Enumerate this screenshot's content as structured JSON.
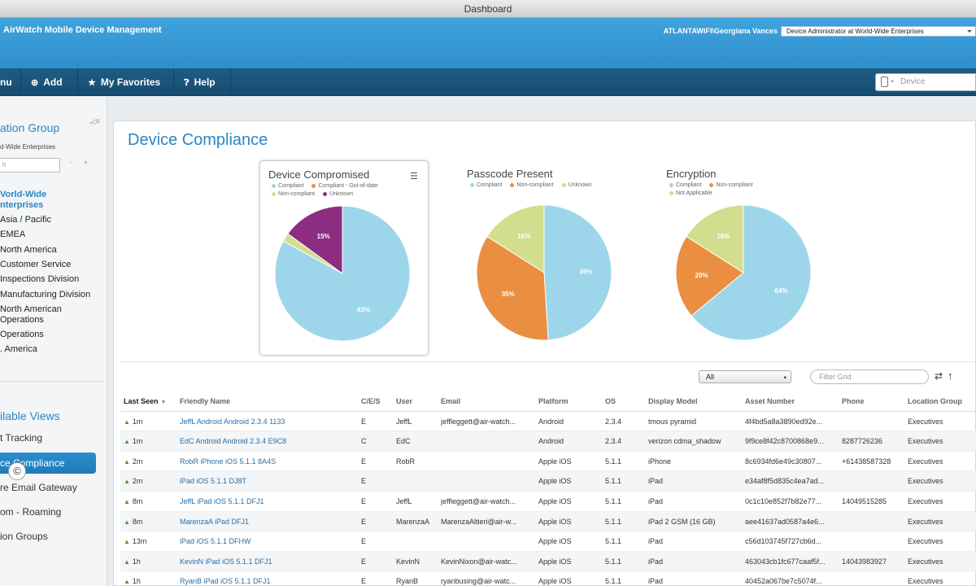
{
  "window": {
    "title": "Dashboard"
  },
  "header": {
    "brand": "AirWatch Mobile Device Management",
    "user": "ATLANTAWIFI\\Georgiana Vances",
    "role": "Device Administrator at World-Wide Enterprises"
  },
  "nav": {
    "items": [
      {
        "label": "nu",
        "icon": "menu-icon"
      },
      {
        "label": "Add",
        "icon": "plus-icon"
      },
      {
        "label": "My Favorites",
        "icon": "star-icon"
      },
      {
        "label": "Help",
        "icon": "help-icon"
      }
    ],
    "device_search_placeholder": "Device"
  },
  "sidebar": {
    "title": "ation Group",
    "subtitle": "d-Wide Enterprises",
    "search_placeholder": "h",
    "tree": [
      {
        "label": "Vorld-Wide"
      },
      {
        "label": "nterprises"
      },
      {
        "label": "Asia / Pacific"
      },
      {
        "label": "EMEA"
      },
      {
        "label": "North America"
      },
      {
        "label": "Customer Service"
      },
      {
        "label": "Inspections Division"
      },
      {
        "label": "Manufacturing Division"
      },
      {
        "label": "North American"
      },
      {
        "label": "Operations"
      },
      {
        "label": "Operations"
      },
      {
        "label": ". America"
      }
    ],
    "views_title": "ilable Views",
    "views": [
      {
        "label": "t Tracking"
      },
      {
        "label": "ce Compliance"
      },
      {
        "label": "re Email Gateway"
      },
      {
        "label": "om - Roaming"
      },
      {
        "label": "ion Groups"
      }
    ],
    "copyright": "©"
  },
  "main": {
    "title": "Device Compliance",
    "grid_filter_value": "All",
    "filter_placeholder": "Filter Grid"
  },
  "charts": {
    "colors": {
      "compliant": "#9dd6ea",
      "compliant_ooo": "#ea8f41",
      "non_compliant": "#d3dd8e",
      "unknown": "#8c2d82",
      "pc_noncompliant": "#ea8f41",
      "pc_unknown": "#d3dd8e",
      "not_applicable": "#d3dd8e"
    }
  },
  "chart_data": [
    {
      "type": "pie",
      "title": "Device Compromised",
      "legend": [
        "Compliant",
        "Compliant - Out-of-date",
        "Non-compliant",
        "Unknown"
      ],
      "slices": [
        {
          "label": "Compliant",
          "value": 83,
          "text": "83%",
          "color": "#9dd6ea"
        },
        {
          "label": "Non-compliant",
          "value": 2,
          "text": "",
          "color": "#d3dd8e"
        },
        {
          "label": "Unknown",
          "value": 15,
          "text": "15%",
          "color": "#8c2d82"
        }
      ]
    },
    {
      "type": "pie",
      "title": "Passcode Present",
      "legend": [
        "Compliant",
        "Non-compliant",
        "Unknown"
      ],
      "slices": [
        {
          "label": "Compliant",
          "value": 49,
          "text": "49%",
          "color": "#9dd6ea"
        },
        {
          "label": "Non-compliant",
          "value": 35,
          "text": "35%",
          "color": "#ea8f41"
        },
        {
          "label": "Unknown",
          "value": 16,
          "text": "16%",
          "color": "#d3dd8e"
        }
      ]
    },
    {
      "type": "pie",
      "title": "Encryption",
      "legend": [
        "Compliant",
        "Non-compliant",
        "Not Applicable"
      ],
      "slices": [
        {
          "label": "Compliant",
          "value": 64,
          "text": "64%",
          "color": "#9dd6ea"
        },
        {
          "label": "Non-compliant",
          "value": 20,
          "text": "20%",
          "color": "#ea8f41"
        },
        {
          "label": "Not Applicable",
          "value": 16,
          "text": "16%",
          "color": "#d3dd8e"
        }
      ]
    }
  ],
  "grid": {
    "columns": [
      "Last Seen",
      "Friendly Name",
      "C/E/S",
      "User",
      "Email",
      "Platform",
      "OS",
      "Display Model",
      "Asset Number",
      "Phone",
      "Location Group"
    ],
    "rows": [
      [
        "1m",
        "JeffL Android Android 2.3.4 1133",
        "E",
        "JeffL",
        "jeffleggett@air-watch...",
        "Android",
        "2.3.4",
        "tmous pyramid",
        "4f4bd5a8a3890ed92e...",
        "",
        "Executives"
      ],
      [
        "1m",
        "EdC Android Android 2.3.4 E9C8",
        "C",
        "EdC",
        "",
        "Android",
        "2.3.4",
        "verizon cdma_shadow",
        "9f9ce8f42c8700868e9...",
        "8287726236",
        "Executives"
      ],
      [
        "2m",
        "RobR iPhone iOS 5.1.1 8A4S",
        "E",
        "RobR",
        "",
        "Apple iOS",
        "5.1.1",
        "iPhone",
        "8c6934fd6e49c30807...",
        "+61438587328",
        "Executives"
      ],
      [
        "2m",
        "iPad iOS 5.1.1 DJ8T",
        "E",
        "",
        "",
        "Apple iOS",
        "5.1.1",
        "iPad",
        "e34af8f5d835c4ea7ad...",
        "",
        "Executives"
      ],
      [
        "8m",
        "JeffL iPad iOS 5.1.1 DFJ1",
        "E",
        "JeffL",
        "jeffleggett@air-watch...",
        "Apple iOS",
        "5.1.1",
        "iPad",
        "0c1c10e852f7b82e77...",
        "14049515285",
        "Executives"
      ],
      [
        "8m",
        "MarenzaA iPad DFJ1",
        "E",
        "MarenzaA",
        "MarenzaAltieri@air-w...",
        "Apple iOS",
        "5.1.1",
        "iPad 2 GSM (16 GB)",
        "aee41637ad0587a4e6...",
        "",
        "Executives"
      ],
      [
        "13m",
        "iPad iOS 5.1.1 DFHW",
        "E",
        "",
        "",
        "Apple iOS",
        "5.1.1",
        "iPad",
        "c56d103745f727cb6d...",
        "",
        "Executives"
      ],
      [
        "1h",
        "KevinN iPad iOS 5.1.1 DFJ1",
        "E",
        "KevinN",
        "KevinNixon@air-watc...",
        "Apple iOS",
        "5.1.1",
        "iPad",
        "463043cb1fc677caaf5f...",
        "14043983927",
        "Executives"
      ],
      [
        "1h",
        "RyanB iPad iOS 5.1.1 DFJ1",
        "E",
        "RyanB",
        "ryanbusing@air-watc...",
        "Apple iOS",
        "5.1.1",
        "iPad",
        "40452a067be7c5074f...",
        "",
        "Executives"
      ]
    ]
  }
}
